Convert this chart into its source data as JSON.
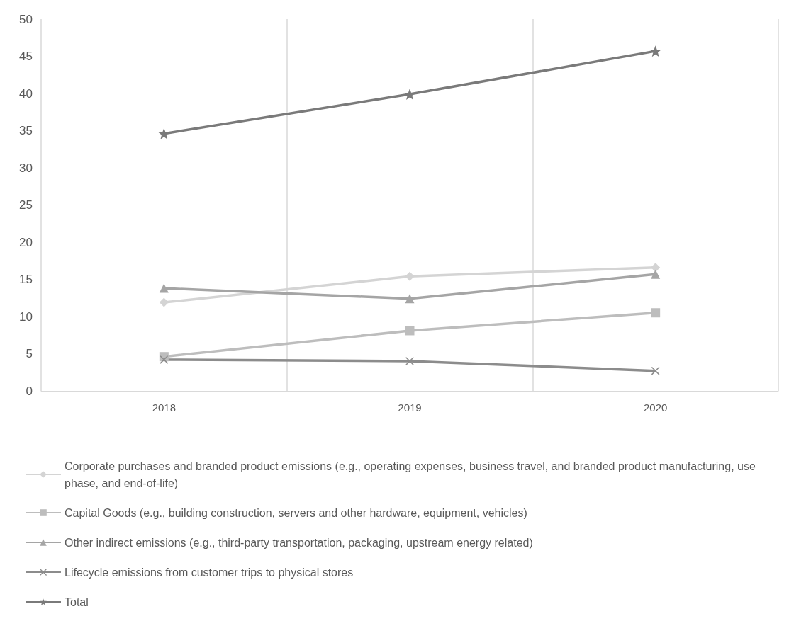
{
  "chart_data": {
    "type": "line",
    "categories": [
      "2018",
      "2019",
      "2020"
    ],
    "series": [
      {
        "name": "Corporate purchases and branded product emissions (e.g., operating expenses, business travel, and branded product manufacturing, use phase, and end-of-life)",
        "color": "#d4d4d4",
        "marker": "diamond",
        "values": [
          11.9,
          15.4,
          16.6
        ]
      },
      {
        "name": "Capital Goods (e.g., building construction, servers and other hardware, equipment, vehicles)",
        "color": "#bdbdbd",
        "marker": "square",
        "values": [
          4.6,
          8.1,
          10.5
        ]
      },
      {
        "name": "Other indirect emissions (e.g., third-party transportation, packaging, upstream energy related)",
        "color": "#a5a5a5",
        "marker": "triangle",
        "values": [
          13.8,
          12.4,
          15.7
        ]
      },
      {
        "name": "Lifecycle emissions from customer trips to physical stores",
        "color": "#8c8c8c",
        "marker": "cross",
        "values": [
          4.2,
          4.0,
          2.7
        ]
      },
      {
        "name": "Total",
        "color": "#7a7a7a",
        "marker": "star",
        "values": [
          34.6,
          39.9,
          45.7
        ]
      }
    ],
    "ylim": [
      0,
      50
    ],
    "yticks": [
      0,
      5,
      10,
      15,
      20,
      25,
      30,
      35,
      40,
      45,
      50
    ],
    "grid": "x",
    "legend": "bottom"
  }
}
